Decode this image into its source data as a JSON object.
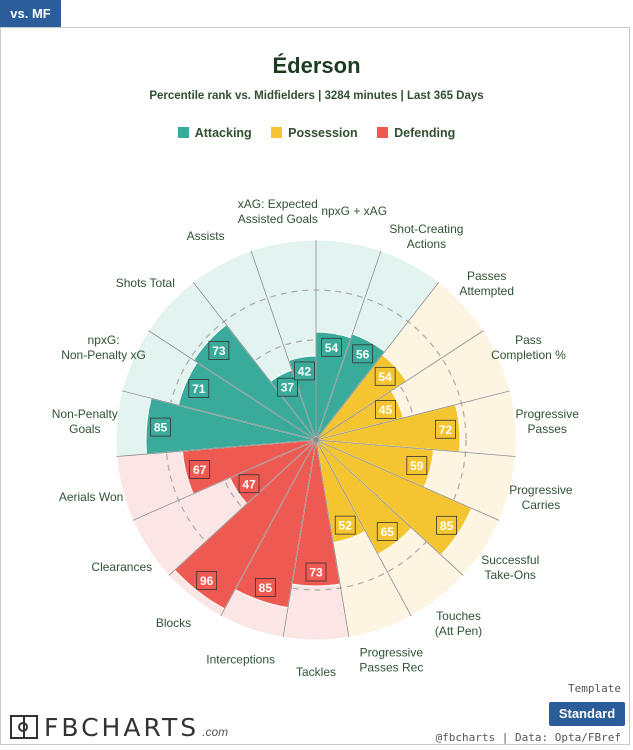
{
  "tab": {
    "label": "vs. MF"
  },
  "header": {
    "title": "Éderson",
    "subtitle": "Percentile rank vs. Midfielders | 3284 minutes | Last 365 Days"
  },
  "legend": [
    {
      "label": "Attacking",
      "color": "#3aaa9b"
    },
    {
      "label": "Possession",
      "color": "#f4c531"
    },
    {
      "label": "Defending",
      "color": "#ee5a52"
    }
  ],
  "chart_data": {
    "type": "polar_bar",
    "categories": [
      "npxG + xAG",
      "Shot-Creating Actions",
      "Passes Attempted",
      "Pass Completion %",
      "Progressive Passes",
      "Progressive Carries",
      "Successful Take-Ons",
      "Touches (Att Pen)",
      "Progressive Passes Rec",
      "Tackles",
      "Interceptions",
      "Blocks",
      "Clearances",
      "Aerials Won",
      "Non-Penalty Goals",
      "npxG: Non-Penalty xG",
      "Shots Total",
      "Assists",
      "xAG: Expected Assisted Goals"
    ],
    "groups": [
      "Attacking",
      "Attacking",
      "Possession",
      "Possession",
      "Possession",
      "Possession",
      "Possession",
      "Possession",
      "Possession",
      "Defending",
      "Defending",
      "Defending",
      "Defending",
      "Defending",
      "Attacking",
      "Attacking",
      "Attacking",
      "Attacking",
      "Attacking"
    ],
    "values": [
      54,
      56,
      54,
      45,
      72,
      59,
      85,
      65,
      52,
      73,
      85,
      96,
      47,
      67,
      85,
      71,
      73,
      37,
      42
    ],
    "rlim": [
      0,
      100
    ],
    "colors": {
      "Attacking": "#3aaa9b",
      "Possession": "#f4c531",
      "Defending": "#ee5a52",
      "Attacking_bg": "#e3f3f0",
      "Possession_bg": "#fdf5e2",
      "Defending_bg": "#fbe6e5"
    }
  },
  "footer": {
    "logo_text": "FBCHARTS",
    "logo_suffix": ".com",
    "credit": "@fbcharts | Data: Opta/FBref",
    "template_label": "Template",
    "template_button": "Standard"
  }
}
